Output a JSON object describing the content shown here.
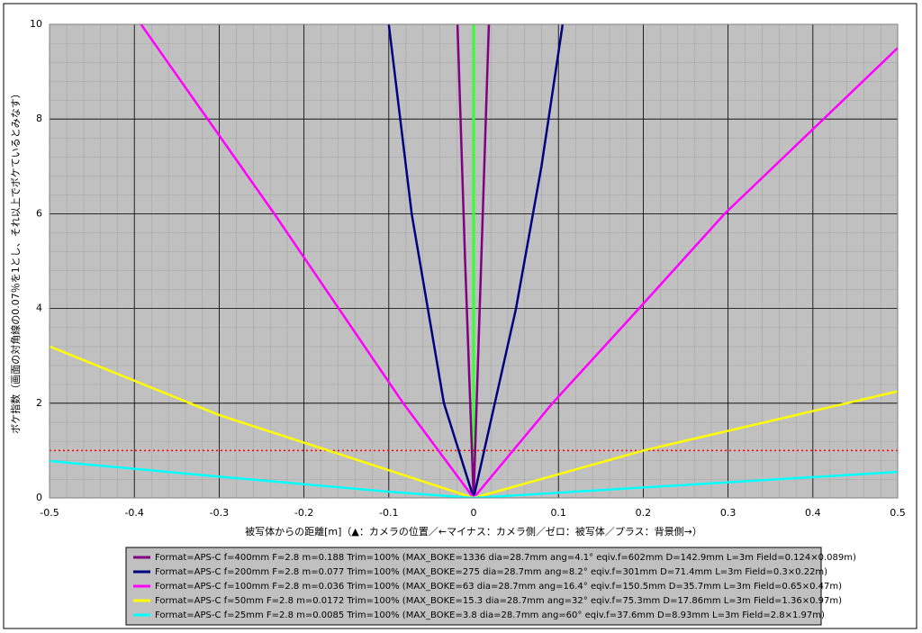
{
  "chart_data": {
    "type": "line",
    "xlabel": "被写体からの距離[m]（▲：カメラの位置／←マイナス：カメラ側／ゼロ：被写体／プラス：背景側→）",
    "ylabel": "ボケ指数（画面の対角線の0.07％を1とし、それ以上でボケているとみなす）",
    "xlim": [
      -0.5,
      0.5
    ],
    "ylim": [
      0,
      10
    ],
    "xticks": [
      -0.5,
      -0.4,
      -0.3,
      -0.2,
      -0.1,
      0,
      0.1,
      0.2,
      0.3,
      0.4,
      0.5
    ],
    "yticks": [
      0,
      2,
      4,
      6,
      8,
      10
    ],
    "grid": true,
    "vline": {
      "x": 0,
      "color": "#33ff33"
    },
    "hline": {
      "y": 1,
      "color": "#ff0000"
    },
    "series": [
      {
        "name": "Format=APS-C f=400mm F=2.8 m=0.188 Trim=100% (MAX_BOKE=1336 dia=28.7mm ang=4.1° eqiv.f=602mm D=142.9mm L=3m Field=0.124×0.089m)",
        "color": "#800080",
        "x": [
          -0.019,
          -0.01,
          0,
          0.009,
          0.018
        ],
        "values": [
          10,
          5,
          0,
          5,
          10
        ]
      },
      {
        "name": "Format=APS-C f=200mm F=2.8 m=0.077 Trim=100% (MAX_BOKE=275 dia=28.7mm ang=8.2° eqiv.f=301mm D=71.4mm L=3m Field=0.3×0.22m)",
        "color": "#000080",
        "x": [
          -0.1,
          -0.073,
          -0.035,
          0,
          0.05,
          0.08,
          0.105
        ],
        "values": [
          10,
          6,
          2,
          0,
          4,
          7,
          10
        ]
      },
      {
        "name": "Format=APS-C f=100mm F=2.8 m=0.036 Trim=100% (MAX_BOKE=63 dia=28.7mm ang=16.4° eqiv.f=150.5mm D=35.7mm L=3m Field=0.65×0.47m)",
        "color": "#ff00ff",
        "x": [
          -0.4,
          -0.235,
          -0.083,
          0,
          0.093,
          0.195,
          0.296,
          0.5
        ],
        "values": [
          10.2,
          6,
          2,
          0,
          2,
          4,
          6,
          9.5
        ]
      },
      {
        "name": "Format=APS-C f=50mm F=2.8 m=0.0172 Trim=100% (MAX_BOKE=15.3 dia=28.7mm ang=32° eqiv.f=75.3mm D=17.86mm L=3m Field=1.36×0.97m)",
        "color": "#ffff00",
        "x": [
          -0.5,
          -0.3,
          -0.171,
          0,
          0.2,
          0.5
        ],
        "values": [
          3.2,
          1.75,
          1,
          0,
          1,
          2.25
        ]
      },
      {
        "name": "Format=APS-C f=25mm F=2.8 m=0.0085 Trim=100% (MAX_BOKE=3.8 dia=28.7mm ang=60° eqiv.f=37.6mm D=8.93mm L=3m Field=2.8×1.97m)",
        "color": "#00ffff",
        "x": [
          -0.5,
          -0.3,
          -0.1,
          0,
          0.2,
          0.5
        ],
        "values": [
          0.78,
          0.45,
          0.13,
          0,
          0.22,
          0.55
        ]
      }
    ]
  }
}
